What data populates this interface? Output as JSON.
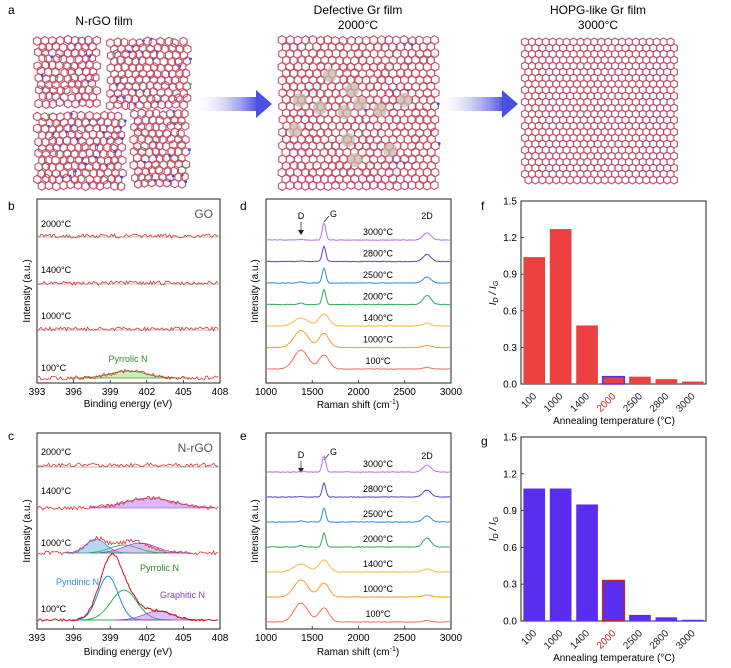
{
  "figure": {
    "panel_labels": [
      "a",
      "b",
      "c",
      "d",
      "e",
      "f",
      "g"
    ],
    "colors": {
      "red": "#ee4040",
      "blue": "#5a2df0",
      "purple": "#b870e8",
      "violet": "#5a3fdc",
      "sky": "#2e8be0",
      "green": "#2eaa5a",
      "orange": "#f5b83c",
      "gold": "#f0a020",
      "salmon": "#f07060",
      "darkred": "#c0272d",
      "atom_blue": "#3050e0",
      "atom_green": "#39c05a"
    }
  },
  "panel_a": {
    "titles": {
      "nrgo": "N-rGO film",
      "defective_1": "Defective Gr film",
      "defective_2": "2000°C",
      "hopg_1": "HOPG-like Gr film",
      "hopg_2": "3000°C"
    }
  },
  "panel_b": {
    "sample": "GO",
    "ylabel": "Intensity (a.u.)",
    "xlabel": "Binding energy (eV)",
    "xticks": [
      "393",
      "396",
      "399",
      "402",
      "405",
      "408"
    ],
    "traces": [
      "2000°C",
      "1400°C",
      "1000°C",
      "100°C"
    ],
    "peak_label": "Pyrrolic N"
  },
  "panel_c": {
    "sample": "N-rGO",
    "ylabel": "Intensity (a.u.)",
    "xlabel": "Binding energy (eV)",
    "xticks": [
      "393",
      "396",
      "399",
      "402",
      "405",
      "408"
    ],
    "traces": [
      "2000°C",
      "1400°C",
      "1000°C",
      "100°C"
    ],
    "peak_labels": {
      "pyridinic": "Pyridinic N",
      "pyrrolic": "Pyrrolic N",
      "graphitic": "Graphitic N"
    }
  },
  "panel_d": {
    "ylabel": "Intensity (a.u.)",
    "xlabel": "Raman shift (cm",
    "xlabel_sup": "-1",
    "xlabel_end": ")",
    "xticks": [
      "1000",
      "1500",
      "2000",
      "2500",
      "3000"
    ],
    "peaks": {
      "d": "D",
      "g": "G",
      "twod": "2D"
    },
    "traces": [
      "3000°C",
      "2800°C",
      "2500°C",
      "2000°C",
      "1400°C",
      "1000°C",
      "100°C"
    ]
  },
  "panel_e": {
    "ylabel": "Intensity (a.u.)",
    "xlabel": "Raman shift (cm",
    "xlabel_sup": "-1",
    "xlabel_end": ")",
    "xticks": [
      "1000",
      "1500",
      "2000",
      "2500",
      "3000"
    ],
    "peaks": {
      "d": "D",
      "g": "G",
      "twod": "2D"
    },
    "traces": [
      "3000°C",
      "2800°C",
      "2500°C",
      "2000°C",
      "1400°C",
      "1000°C",
      "100°C"
    ]
  },
  "chart_data": [
    {
      "id": "f",
      "type": "bar",
      "title": "",
      "ylabel": "ID / IG",
      "ylabel_main": "I",
      "ylabel_sub1": "D",
      "ylabel_mid": " / I",
      "ylabel_sub2": "G",
      "xlabel": "Annealing temperature (°C)",
      "categories": [
        "100",
        "1000",
        "1400",
        "2000",
        "2500",
        "2800",
        "3000"
      ],
      "values": [
        1.04,
        1.27,
        0.48,
        0.06,
        0.06,
        0.04,
        0.02
      ],
      "yticks": [
        "0.0",
        "0.3",
        "0.6",
        "0.9",
        "1.2",
        "1.5"
      ],
      "ylim": [
        0,
        1.5
      ],
      "highlight_index": 3
    },
    {
      "id": "g",
      "type": "bar",
      "title": "",
      "ylabel": "ID / IG",
      "ylabel_main": "I",
      "ylabel_sub1": "D",
      "ylabel_mid": " / I",
      "ylabel_sub2": "G",
      "xlabel": "Annealing temperature (°C)",
      "categories": [
        "100",
        "1000",
        "1400",
        "2000",
        "2500",
        "2800",
        "3000"
      ],
      "values": [
        1.08,
        1.08,
        0.95,
        0.33,
        0.05,
        0.03,
        0.01
      ],
      "yticks": [
        "0.0",
        "0.3",
        "0.6",
        "0.9",
        "1.2",
        "1.5"
      ],
      "ylim": [
        0,
        1.5
      ],
      "highlight_index": 3
    }
  ]
}
